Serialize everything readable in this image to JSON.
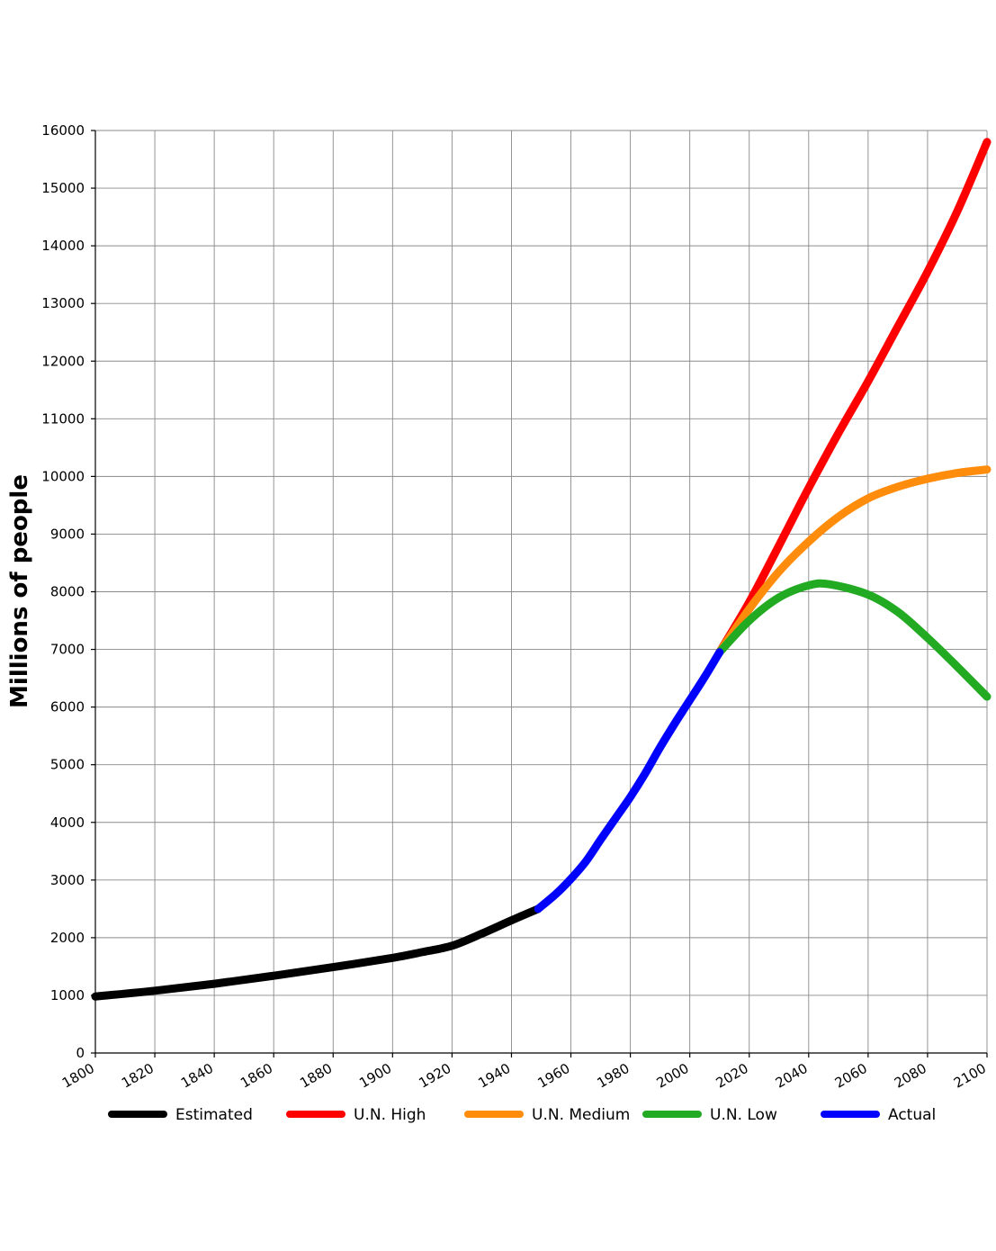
{
  "chart_data": {
    "type": "line",
    "title": "",
    "xlabel": "",
    "ylabel": "Millions of people",
    "xlim": [
      1800,
      2100
    ],
    "ylim": [
      0,
      16000
    ],
    "grid": true,
    "legend_position": "bottom",
    "x_ticks": [
      "1800",
      "1820",
      "1840",
      "1860",
      "1880",
      "1900",
      "1920",
      "1940",
      "1960",
      "1980",
      "2000",
      "2020",
      "2040",
      "2060",
      "2080",
      "2100"
    ],
    "y_ticks": [
      "0",
      "1000",
      "2000",
      "3000",
      "4000",
      "5000",
      "6000",
      "7000",
      "8000",
      "9000",
      "10000",
      "11000",
      "12000",
      "13000",
      "14000",
      "15000",
      "16000"
    ],
    "series": [
      {
        "name": "Estimated",
        "color": "#000000",
        "points": [
          [
            1800,
            980
          ],
          [
            1820,
            1080
          ],
          [
            1840,
            1200
          ],
          [
            1860,
            1340
          ],
          [
            1880,
            1490
          ],
          [
            1900,
            1650
          ],
          [
            1910,
            1750
          ],
          [
            1920,
            1860
          ],
          [
            1930,
            2070
          ],
          [
            1940,
            2300
          ],
          [
            1949,
            2500
          ]
        ]
      },
      {
        "name": "U.N. High",
        "color": "#ff0000",
        "points": [
          [
            2010,
            6950
          ],
          [
            2020,
            7820
          ],
          [
            2030,
            8800
          ],
          [
            2040,
            9800
          ],
          [
            2050,
            10750
          ],
          [
            2060,
            11650
          ],
          [
            2070,
            12600
          ],
          [
            2080,
            13550
          ],
          [
            2090,
            14600
          ],
          [
            2100,
            15800
          ]
        ]
      },
      {
        "name": "U.N. Medium",
        "color": "#ff8c0a",
        "points": [
          [
            2010,
            6950
          ],
          [
            2020,
            7700
          ],
          [
            2030,
            8350
          ],
          [
            2040,
            8870
          ],
          [
            2050,
            9300
          ],
          [
            2060,
            9620
          ],
          [
            2070,
            9820
          ],
          [
            2080,
            9960
          ],
          [
            2090,
            10060
          ],
          [
            2100,
            10120
          ]
        ]
      },
      {
        "name": "U.N. Low",
        "color": "#22aa22",
        "points": [
          [
            2010,
            6950
          ],
          [
            2020,
            7500
          ],
          [
            2030,
            7900
          ],
          [
            2040,
            8110
          ],
          [
            2047,
            8130
          ],
          [
            2060,
            7950
          ],
          [
            2070,
            7650
          ],
          [
            2080,
            7200
          ],
          [
            2090,
            6700
          ],
          [
            2100,
            6180
          ]
        ]
      },
      {
        "name": "Actual",
        "color": "#0000ff",
        "points": [
          [
            1949,
            2500
          ],
          [
            1955,
            2760
          ],
          [
            1960,
            3020
          ],
          [
            1965,
            3320
          ],
          [
            1970,
            3700
          ],
          [
            1975,
            4070
          ],
          [
            1980,
            4440
          ],
          [
            1985,
            4850
          ],
          [
            1990,
            5300
          ],
          [
            1995,
            5720
          ],
          [
            2000,
            6120
          ],
          [
            2005,
            6520
          ],
          [
            2010,
            6950
          ]
        ]
      }
    ]
  }
}
